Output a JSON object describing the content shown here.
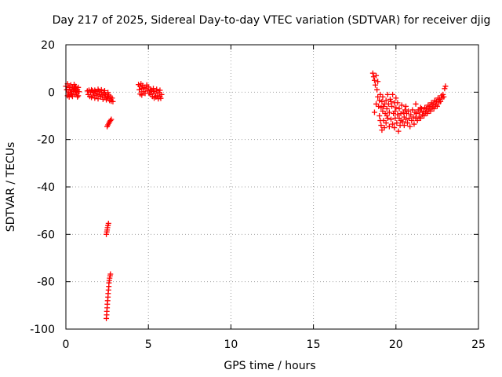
{
  "chart_data": {
    "type": "scatter",
    "title": "Day 217 of 2025, Sidereal Day-to-day VTEC variation (SDTVAR) for receiver djig",
    "xlabel": "GPS time / hours",
    "ylabel": "SDTVAR / TECUs",
    "xlim": [
      0,
      25
    ],
    "ylim": [
      -100,
      20
    ],
    "xticks": [
      0,
      5,
      10,
      15,
      20,
      25
    ],
    "yticks": [
      20,
      0,
      -20,
      -40,
      -60,
      -80,
      -100
    ],
    "xtick_labels": [
      "0",
      "5",
      "10",
      "15",
      "20",
      "25"
    ],
    "ytick_labels": [
      "20",
      "0",
      "-20",
      "-40",
      "-60",
      "-80",
      "-100"
    ],
    "grid": true,
    "marker": "plus",
    "color": "#ff0000",
    "series": [
      {
        "points": [
          [
            0.0,
            2.5
          ],
          [
            0.05,
            1.0
          ],
          [
            0.1,
            3.5
          ],
          [
            0.1,
            -1.5
          ],
          [
            0.15,
            0.0
          ],
          [
            0.2,
            2.0
          ],
          [
            0.2,
            -2.0
          ],
          [
            0.25,
            1.2
          ],
          [
            0.3,
            3.0
          ],
          [
            0.3,
            -0.5
          ],
          [
            0.35,
            0.8
          ],
          [
            0.4,
            2.2
          ],
          [
            0.4,
            -1.8
          ],
          [
            0.45,
            0.3
          ],
          [
            0.5,
            1.5
          ],
          [
            0.5,
            3.2
          ],
          [
            0.55,
            -1.0
          ],
          [
            0.6,
            0.5
          ],
          [
            0.6,
            2.4
          ],
          [
            0.65,
            -0.3
          ],
          [
            0.7,
            1.0
          ],
          [
            0.7,
            -2.0
          ],
          [
            0.75,
            2.0
          ],
          [
            0.8,
            0.2
          ],
          [
            0.15,
            -0.8
          ],
          [
            0.35,
            -1.2
          ],
          [
            0.55,
            1.8
          ],
          [
            0.75,
            -1.5
          ],
          [
            1.3,
            0.5
          ],
          [
            1.35,
            -1.0
          ],
          [
            1.4,
            0.8
          ],
          [
            1.45,
            -1.8
          ],
          [
            1.5,
            0.0
          ],
          [
            1.55,
            -2.2
          ],
          [
            1.6,
            0.6
          ],
          [
            1.65,
            -1.2
          ],
          [
            1.7,
            -0.3
          ],
          [
            1.75,
            -2.5
          ],
          [
            1.8,
            0.3
          ],
          [
            1.85,
            -1.5
          ],
          [
            1.9,
            -0.6
          ],
          [
            1.95,
            -2.8
          ],
          [
            2.0,
            0.5
          ],
          [
            2.05,
            -1.0
          ],
          [
            2.1,
            -2.0
          ],
          [
            2.15,
            0.0
          ],
          [
            2.2,
            -1.5
          ],
          [
            2.25,
            -3.0
          ],
          [
            2.3,
            -0.5
          ],
          [
            2.35,
            -2.2
          ],
          [
            2.4,
            -1.0
          ],
          [
            2.45,
            -3.2
          ],
          [
            2.5,
            -1.8
          ],
          [
            2.55,
            -2.6
          ],
          [
            2.6,
            -1.2
          ],
          [
            2.65,
            -3.5
          ],
          [
            2.7,
            -2.0
          ],
          [
            2.75,
            -3.8
          ],
          [
            2.8,
            -2.5
          ],
          [
            2.85,
            -4.0
          ],
          [
            1.55,
            1.0
          ],
          [
            1.75,
            0.8
          ],
          [
            1.95,
            1.2
          ],
          [
            2.15,
            1.0
          ],
          [
            2.35,
            0.6
          ],
          [
            2.55,
            -0.2
          ],
          [
            2.5,
            -14.5
          ],
          [
            2.55,
            -13.8
          ],
          [
            2.6,
            -13.2
          ],
          [
            2.65,
            -12.5
          ],
          [
            2.7,
            -12.0
          ],
          [
            2.75,
            -11.5
          ],
          [
            2.45,
            -60.0
          ],
          [
            2.48,
            -59.0
          ],
          [
            2.5,
            -58.2
          ],
          [
            2.52,
            -57.2
          ],
          [
            2.55,
            -56.3
          ],
          [
            2.58,
            -55.4
          ],
          [
            2.45,
            -95.5
          ],
          [
            2.47,
            -94.0
          ],
          [
            2.48,
            -92.5
          ],
          [
            2.5,
            -91.0
          ],
          [
            2.51,
            -89.5
          ],
          [
            2.53,
            -88.0
          ],
          [
            2.55,
            -86.5
          ],
          [
            2.56,
            -85.0
          ],
          [
            2.58,
            -83.5
          ],
          [
            2.6,
            -82.0
          ],
          [
            2.61,
            -80.5
          ],
          [
            2.63,
            -79.5
          ],
          [
            2.65,
            -78.5
          ],
          [
            2.68,
            -77.5
          ],
          [
            2.7,
            -76.8
          ],
          [
            4.4,
            3.2
          ],
          [
            4.45,
            1.0
          ],
          [
            4.5,
            2.5
          ],
          [
            4.5,
            -0.8
          ],
          [
            4.55,
            3.5
          ],
          [
            4.6,
            1.5
          ],
          [
            4.6,
            -1.2
          ],
          [
            4.65,
            2.8
          ],
          [
            4.7,
            0.2
          ],
          [
            4.75,
            2.0
          ],
          [
            4.8,
            -0.5
          ],
          [
            4.85,
            1.5
          ],
          [
            4.9,
            3.0
          ],
          [
            4.95,
            0.5
          ],
          [
            5.0,
            2.2
          ],
          [
            5.05,
            -0.5
          ],
          [
            5.1,
            1.0
          ],
          [
            5.15,
            -1.0
          ],
          [
            5.2,
            0.8
          ],
          [
            5.25,
            -1.8
          ],
          [
            5.3,
            0.3
          ],
          [
            5.35,
            -2.5
          ],
          [
            5.4,
            -0.5
          ],
          [
            5.45,
            -2.0
          ],
          [
            5.5,
            0.5
          ],
          [
            5.55,
            -1.5
          ],
          [
            5.6,
            -2.8
          ],
          [
            5.65,
            -0.2
          ],
          [
            5.7,
            -1.8
          ],
          [
            5.75,
            -2.6
          ],
          [
            5.8,
            -1.0
          ],
          [
            5.3,
            1.5
          ],
          [
            5.5,
            1.2
          ],
          [
            5.7,
            0.8
          ],
          [
            18.6,
            8.0
          ],
          [
            18.65,
            6.5
          ],
          [
            18.7,
            5.0
          ],
          [
            18.7,
            -8.5
          ],
          [
            18.75,
            3.0
          ],
          [
            18.8,
            7.0
          ],
          [
            18.8,
            -5.0
          ],
          [
            18.85,
            1.0
          ],
          [
            18.9,
            -2.0
          ],
          [
            18.9,
            4.5
          ],
          [
            18.95,
            -6.0
          ],
          [
            19.0,
            -3.5
          ],
          [
            19.0,
            -10.0
          ],
          [
            19.05,
            -1.0
          ],
          [
            19.05,
            -12.0
          ],
          [
            19.1,
            -6.5
          ],
          [
            19.1,
            -14.0
          ],
          [
            19.15,
            -4.0
          ],
          [
            19.15,
            -16.0
          ],
          [
            19.2,
            -8.0
          ],
          [
            19.2,
            -2.0
          ],
          [
            19.25,
            -12.0
          ],
          [
            19.3,
            -5.0
          ],
          [
            19.3,
            -15.0
          ],
          [
            19.35,
            -9.0
          ],
          [
            19.4,
            -3.5
          ],
          [
            19.4,
            -13.0
          ],
          [
            19.45,
            -7.0
          ],
          [
            19.5,
            -1.0
          ],
          [
            19.5,
            -11.0
          ],
          [
            19.55,
            -5.0
          ],
          [
            19.6,
            -14.5
          ],
          [
            19.6,
            -8.5
          ],
          [
            19.65,
            -3.0
          ],
          [
            19.7,
            -11.5
          ],
          [
            19.75,
            -6.0
          ],
          [
            19.8,
            -13.5
          ],
          [
            19.8,
            -1.0
          ],
          [
            19.85,
            -9.0
          ],
          [
            19.9,
            -4.5
          ],
          [
            19.9,
            -15.0
          ],
          [
            19.95,
            -11.0
          ],
          [
            20.0,
            -6.5
          ],
          [
            20.0,
            -2.5
          ],
          [
            20.05,
            -13.0
          ],
          [
            20.1,
            -9.5
          ],
          [
            20.1,
            -4.5
          ],
          [
            20.15,
            -16.5
          ],
          [
            20.2,
            -11.0
          ],
          [
            20.2,
            -7.0
          ],
          [
            20.25,
            -14.0
          ],
          [
            20.3,
            -9.0
          ],
          [
            20.35,
            -5.5
          ],
          [
            20.4,
            -12.5
          ],
          [
            20.45,
            -8.5
          ],
          [
            20.5,
            -10.5
          ],
          [
            20.5,
            -14.0
          ],
          [
            20.55,
            -7.5
          ],
          [
            20.6,
            -11.5
          ],
          [
            20.65,
            -9.0
          ],
          [
            20.7,
            -13.0
          ],
          [
            20.75,
            -8.0
          ],
          [
            20.8,
            -11.0
          ],
          [
            20.85,
            -14.5
          ],
          [
            20.9,
            -9.5
          ],
          [
            20.95,
            -12.0
          ],
          [
            21.0,
            -7.5
          ],
          [
            21.05,
            -10.5
          ],
          [
            21.1,
            -13.5
          ],
          [
            21.15,
            -8.5
          ],
          [
            21.2,
            -11.0
          ],
          [
            21.25,
            -9.0
          ],
          [
            21.3,
            -12.0
          ],
          [
            21.35,
            -7.5
          ],
          [
            21.4,
            -10.5
          ],
          [
            21.45,
            -8.5
          ],
          [
            21.5,
            -11.0
          ],
          [
            21.55,
            -7.0
          ],
          [
            21.6,
            -9.5
          ],
          [
            21.65,
            -8.0
          ],
          [
            21.7,
            -10.0
          ],
          [
            21.75,
            -6.5
          ],
          [
            21.8,
            -8.5
          ],
          [
            21.85,
            -7.0
          ],
          [
            21.9,
            -9.0
          ],
          [
            21.95,
            -5.5
          ],
          [
            22.0,
            -7.5
          ],
          [
            22.05,
            -6.0
          ],
          [
            22.1,
            -8.0
          ],
          [
            22.15,
            -4.5
          ],
          [
            22.2,
            -6.5
          ],
          [
            22.25,
            -5.0
          ],
          [
            22.3,
            -7.0
          ],
          [
            22.35,
            -3.5
          ],
          [
            22.4,
            -5.5
          ],
          [
            22.45,
            -4.0
          ],
          [
            22.5,
            -6.0
          ],
          [
            22.55,
            -2.5
          ],
          [
            22.6,
            -4.5
          ],
          [
            22.65,
            -3.0
          ],
          [
            22.7,
            -4.0
          ],
          [
            22.75,
            -1.5
          ],
          [
            22.8,
            -2.5
          ],
          [
            22.85,
            -1.0
          ],
          [
            22.9,
            -2.0
          ],
          [
            22.95,
            1.5
          ],
          [
            23.0,
            2.5
          ],
          [
            19.25,
            -6.0
          ],
          [
            19.45,
            -10.0
          ],
          [
            19.7,
            -4.0
          ],
          [
            19.95,
            -8.0
          ],
          [
            20.3,
            -12.0
          ],
          [
            20.6,
            -6.0
          ],
          [
            21.2,
            -5.0
          ],
          [
            21.5,
            -6.5
          ]
        ]
      }
    ]
  }
}
